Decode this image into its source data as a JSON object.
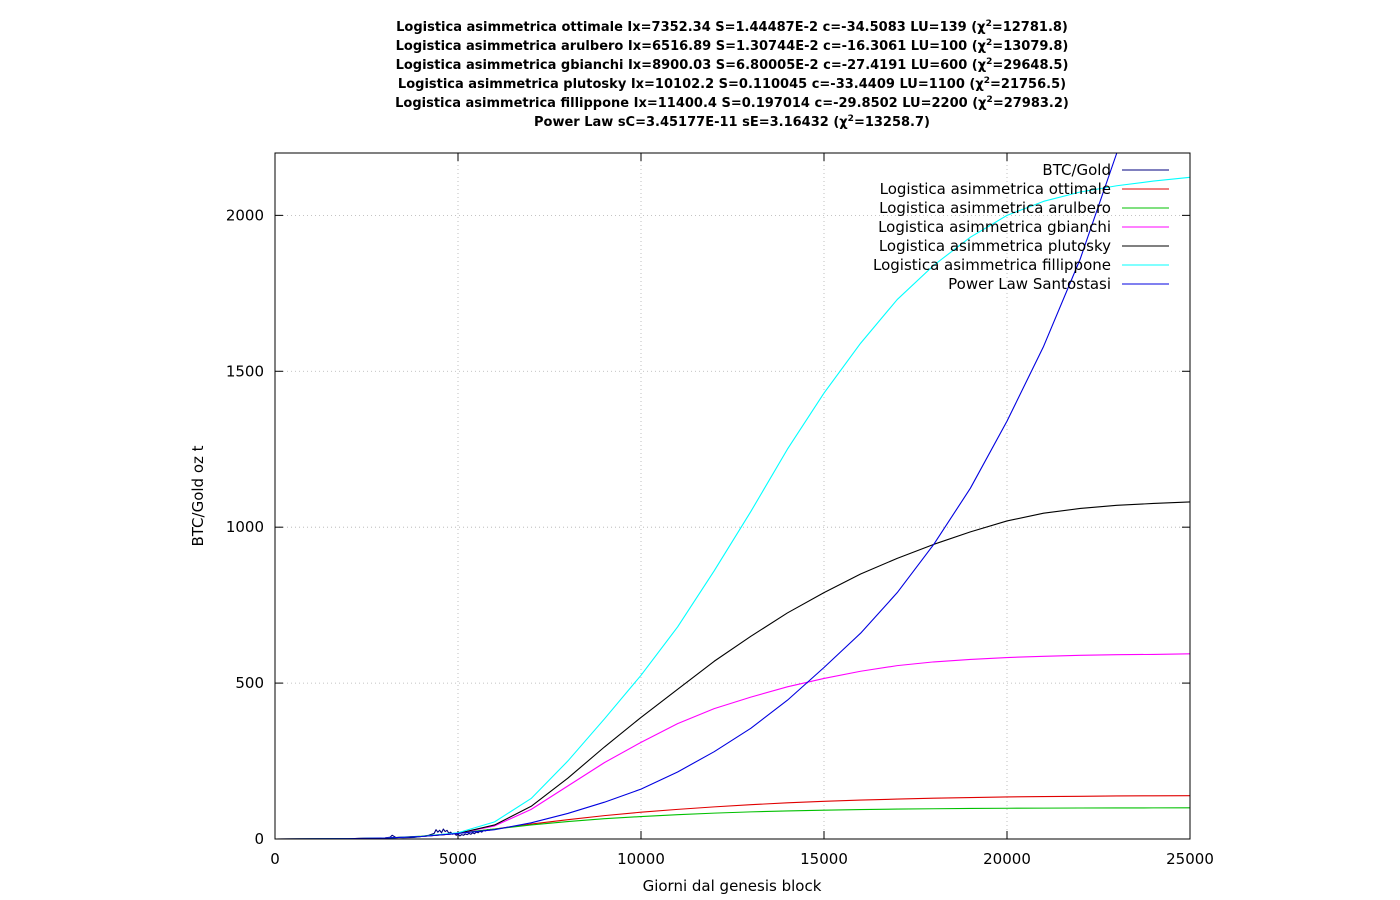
{
  "titles": [
    {
      "text": "Logistica asimmetrica ottimale Ix=7352.34 S=1.44487E-2 c=-34.5083 LU=139 (χ",
      "sup": "2",
      "tail": "=12781.8)"
    },
    {
      "text": "Logistica asimmetrica arulbero Ix=6516.89 S=1.30744E-2 c=-16.3061 LU=100 (χ",
      "sup": "2",
      "tail": "=13079.8)"
    },
    {
      "text": "Logistica asimmetrica gbianchi Ix=8900.03 S=6.80005E-2 c=-27.4191 LU=600 (χ",
      "sup": "2",
      "tail": "=29648.5)"
    },
    {
      "text": "Logistica asimmetrica plutosky Ix=10102.2 S=0.110045 c=-33.4409 LU=1100 (χ",
      "sup": "2",
      "tail": "=21756.5)"
    },
    {
      "text": "Logistica asimmetrica fillippone Ix=11400.4 S=0.197014 c=-29.8502 LU=2200 (χ",
      "sup": "2",
      "tail": "=27983.2)"
    },
    {
      "text": "Power Law sC=3.45177E-11 sE=3.16432 (χ",
      "sup": "2",
      "tail": "=13258.7)"
    }
  ],
  "chart_data": {
    "type": "line",
    "xlabel": "Giorni dal genesis block",
    "ylabel": "BTC/Gold oz t",
    "xlim": [
      0,
      25000
    ],
    "ylim": [
      0,
      2200
    ],
    "xticks": [
      0,
      5000,
      10000,
      15000,
      20000,
      25000
    ],
    "yticks": [
      0,
      500,
      1000,
      1500,
      2000
    ],
    "grid": true,
    "legend_position": "top-right",
    "series": [
      {
        "name": "BTC/Gold",
        "color": "#00007f",
        "x": [
          0,
          1500,
          2500,
          3000,
          3150,
          3200,
          3300,
          3500,
          3800,
          4000,
          4200,
          4350,
          4400,
          4450,
          4500,
          4550,
          4600,
          4650,
          4700,
          4750,
          4800,
          4850,
          4900,
          4950,
          5000,
          5050,
          5100,
          5150,
          5200,
          5250,
          5300,
          5350,
          5400,
          5450,
          5500,
          5550,
          5600,
          5650,
          5700,
          5750,
          5800,
          5850,
          5900
        ],
        "y": [
          0,
          0.1,
          1.5,
          3,
          6,
          12,
          5,
          4,
          5,
          8,
          12,
          18,
          30,
          22,
          28,
          20,
          32,
          24,
          28,
          18,
          22,
          15,
          18,
          12,
          16,
          10,
          14,
          12,
          16,
          14,
          18,
          15,
          20,
          17,
          22,
          20,
          25,
          22,
          28,
          26,
          30,
          28,
          32
        ]
      },
      {
        "name": "Logistica asimmetrica ottimale",
        "color": "#e00000",
        "x": [
          0,
          2000,
          3000,
          4000,
          5000,
          6000,
          7000,
          8000,
          9000,
          10000,
          11000,
          12000,
          13000,
          14000,
          15000,
          16000,
          17000,
          18000,
          19000,
          20000,
          21000,
          22000,
          23000,
          24000,
          25000
        ],
        "y": [
          0,
          1,
          3,
          8,
          18,
          32,
          48,
          62,
          75,
          86,
          95,
          103,
          110,
          116,
          121,
          125,
          128,
          131,
          133,
          135,
          136,
          137,
          138,
          138.5,
          139
        ]
      },
      {
        "name": "Logistica asimmetrica arulbero",
        "color": "#00c000",
        "x": [
          0,
          2000,
          3000,
          4000,
          5000,
          6000,
          7000,
          8000,
          9000,
          10000,
          11000,
          12000,
          13000,
          14000,
          15000,
          16000,
          17000,
          18000,
          19000,
          20000,
          21000,
          22000,
          23000,
          24000,
          25000
        ],
        "y": [
          0,
          1,
          3,
          9,
          19,
          32,
          45,
          56,
          65,
          72,
          78,
          83,
          87,
          90,
          92.5,
          94.5,
          96,
          97,
          98,
          98.6,
          99,
          99.4,
          99.6,
          99.8,
          100
        ]
      },
      {
        "name": "Logistica asimmetrica gbianchi",
        "color": "#ff00ff",
        "x": [
          0,
          2000,
          3000,
          4000,
          5000,
          6000,
          7000,
          8000,
          9000,
          10000,
          11000,
          12000,
          13000,
          14000,
          15000,
          16000,
          17000,
          18000,
          19000,
          20000,
          21000,
          22000,
          23000,
          24000,
          25000
        ],
        "y": [
          0,
          1,
          3,
          8,
          18,
          42,
          95,
          170,
          245,
          310,
          370,
          418,
          455,
          488,
          515,
          538,
          556,
          568,
          576,
          582,
          586,
          589,
          591,
          592,
          594
        ]
      },
      {
        "name": "Logistica asimmetrica plutosky",
        "color": "#000000",
        "x": [
          0,
          2000,
          3000,
          4000,
          5000,
          6000,
          7000,
          8000,
          9000,
          10000,
          11000,
          12000,
          13000,
          14000,
          15000,
          16000,
          17000,
          18000,
          19000,
          20000,
          21000,
          22000,
          23000,
          24000,
          25000
        ],
        "y": [
          0,
          1,
          3,
          8,
          18,
          45,
          105,
          195,
          295,
          390,
          480,
          570,
          650,
          725,
          790,
          850,
          900,
          945,
          985,
          1020,
          1045,
          1060,
          1070,
          1076,
          1081
        ]
      },
      {
        "name": "Logistica asimmetrica fillippone",
        "color": "#00ffff",
        "x": [
          0,
          2000,
          3000,
          4000,
          5000,
          6000,
          7000,
          8000,
          9000,
          10000,
          11000,
          12000,
          13000,
          14000,
          15000,
          16000,
          17000,
          18000,
          19000,
          20000,
          21000,
          22000,
          23000,
          24000,
          25000
        ],
        "y": [
          0,
          1,
          3,
          8,
          20,
          55,
          130,
          250,
          385,
          525,
          680,
          860,
          1050,
          1250,
          1430,
          1590,
          1730,
          1840,
          1930,
          2000,
          2045,
          2075,
          2095,
          2110,
          2122
        ]
      },
      {
        "name": "Power Law Santostasi",
        "color": "#0000e0",
        "x": [
          0,
          2000,
          3000,
          4000,
          5000,
          6000,
          7000,
          8000,
          9000,
          10000,
          11000,
          12000,
          13000,
          14000,
          15000,
          16000,
          17000,
          18000,
          19000,
          20000,
          21000,
          22000,
          23000
        ],
        "y": [
          0,
          1,
          3,
          8,
          18,
          30,
          52,
          82,
          118,
          160,
          215,
          280,
          355,
          445,
          550,
          660,
          790,
          945,
          1125,
          1340,
          1580,
          1860,
          2200
        ]
      }
    ]
  }
}
